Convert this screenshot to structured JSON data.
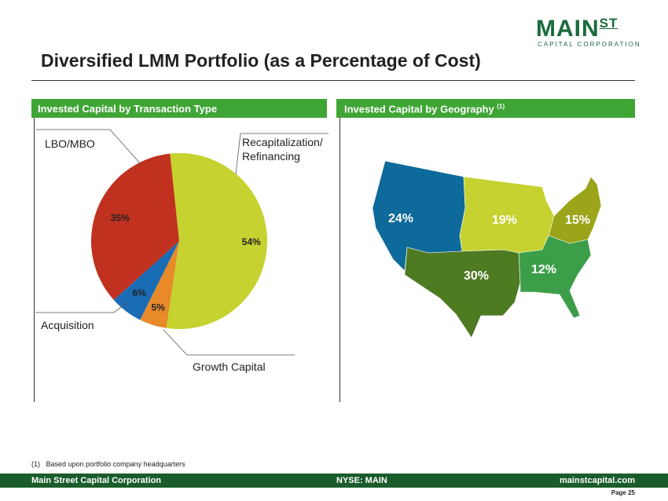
{
  "header": {
    "logo_main": "MAIN",
    "logo_st": "ST",
    "logo_sub": "CAPITAL CORPORATION",
    "title": "Diversified LMM Portfolio (as a Percentage of Cost)"
  },
  "panels": [
    {
      "title": "Invested Capital by Transaction Type"
    },
    {
      "title": "Invested Capital by Geography",
      "note_ref": "(1)"
    }
  ],
  "chart_data": {
    "type": "pie",
    "categories": [
      "Recapitalization/ Refinancing",
      "Growth Capital",
      "Acquisition",
      "LBO/MBO"
    ],
    "values": [
      54,
      5,
      6,
      35
    ],
    "value_labels": [
      "54%",
      "5%",
      "6%",
      "35%"
    ],
    "colors": [
      "#c5d22f",
      "#e8892a",
      "#1a6cb5",
      "#c0311f"
    ]
  },
  "map": {
    "regions": [
      {
        "label": "24%",
        "color": "#0e6a9a"
      },
      {
        "label": "19%",
        "color": "#c5d22f"
      },
      {
        "label": "15%",
        "color": "#9aa51a"
      },
      {
        "label": "30%",
        "color": "#4e7a22"
      },
      {
        "label": "12%",
        "color": "#3d9e4a"
      }
    ]
  },
  "footnote": {
    "ref": "(1)",
    "text": "Based upon portfolio company headquarters"
  },
  "footer": {
    "left": "Main Street Capital Corporation",
    "center": "NYSE: MAIN",
    "right": "mainstcapital.com",
    "page": "Page 25"
  }
}
